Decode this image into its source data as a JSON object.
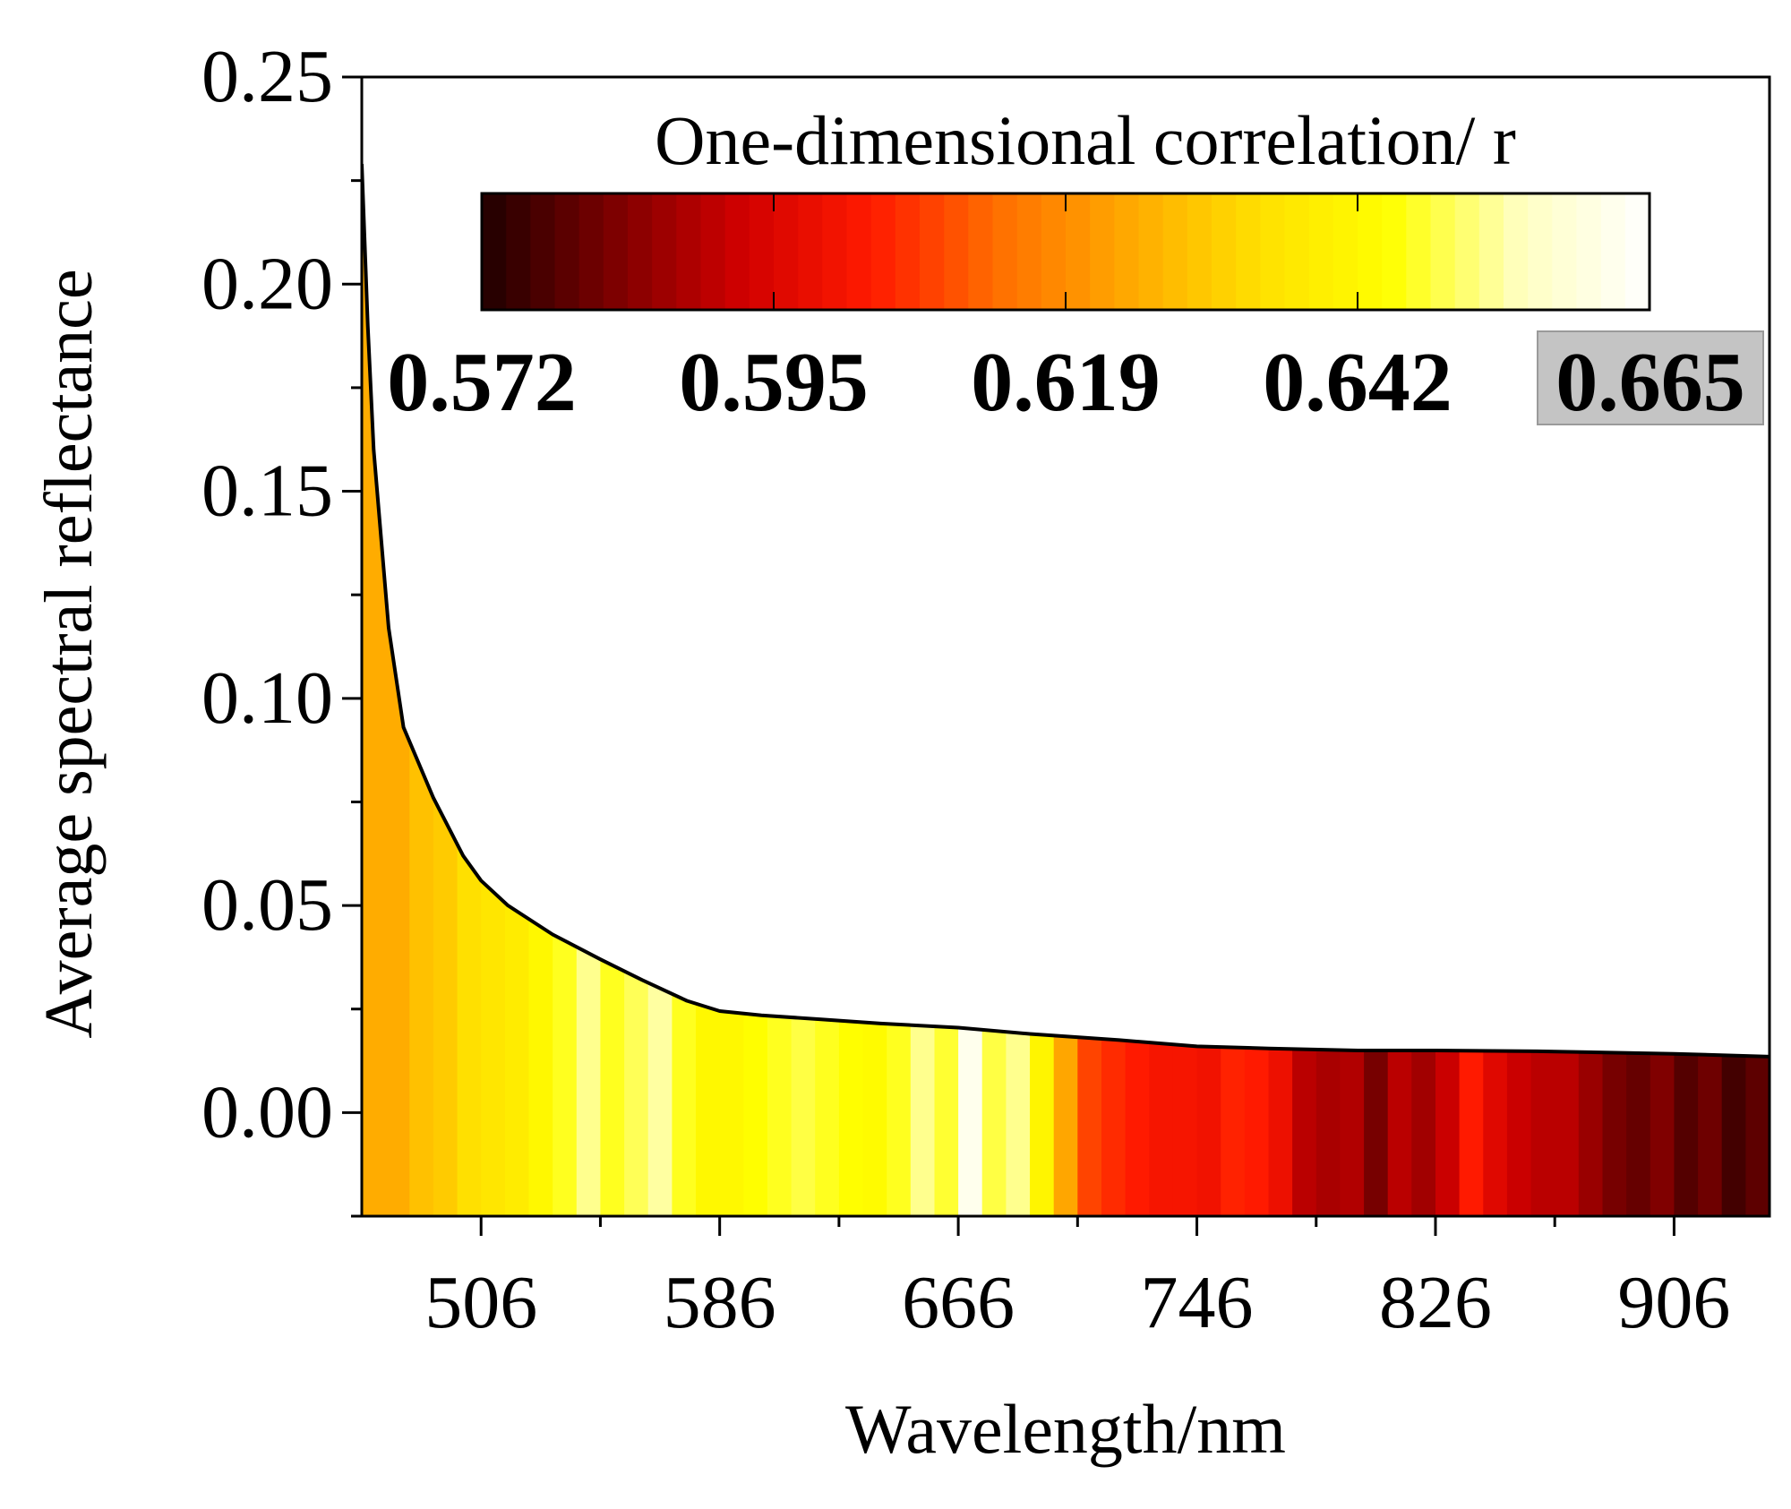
{
  "chart_data": {
    "type": "area",
    "title": "",
    "xlabel": "Wavelength/nm",
    "ylabel": "Average spectral reflectance",
    "xlim": [
      466,
      938
    ],
    "ylim": [
      -0.025,
      0.25
    ],
    "xticks": [
      506,
      586,
      666,
      746,
      826,
      906
    ],
    "xtick_labels": [
      "506",
      "586",
      "666",
      "746",
      "826",
      "906"
    ],
    "yticks": [
      0.0,
      0.05,
      0.1,
      0.15,
      0.2,
      0.25
    ],
    "ytick_labels": [
      "0.00",
      "0.05",
      "0.10",
      "0.15",
      "0.20",
      "0.25"
    ],
    "grid": false,
    "series": [
      {
        "x": [
          466,
          468,
          470,
          475,
          480,
          490,
          500,
          506,
          515,
          530,
          546,
          560,
          575,
          586,
          600,
          620,
          640,
          666,
          690,
          720,
          746,
          770,
          800,
          826,
          860,
          906,
          938
        ],
        "y": [
          0.229,
          0.19,
          0.16,
          0.117,
          0.093,
          0.076,
          0.062,
          0.056,
          0.05,
          0.043,
          0.037,
          0.032,
          0.027,
          0.0245,
          0.0235,
          0.0225,
          0.0215,
          0.0205,
          0.019,
          0.0175,
          0.016,
          0.0155,
          0.015,
          0.015,
          0.0148,
          0.0142,
          0.0135
        ]
      }
    ],
    "colorbar": {
      "title": "One-dimensional correlation/ r",
      "tick_labels": [
        "0.572",
        "0.595",
        "0.619",
        "0.642",
        "0.665"
      ],
      "min": 0.572,
      "max": 0.665,
      "location": "top",
      "colormap": [
        "#200000",
        "#7a0000",
        "#d00000",
        "#ff1a00",
        "#ff7000",
        "#ffaa00",
        "#ffe000",
        "#ffff00",
        "#ffffc0",
        "#ffffff"
      ]
    },
    "bands": {
      "x_start": 466,
      "width": 8,
      "r": [
        0.624,
        0.624,
        0.628,
        0.63,
        0.634,
        0.636,
        0.638,
        0.642,
        0.646,
        0.652,
        0.646,
        0.649,
        0.653,
        0.646,
        0.642,
        0.642,
        0.644,
        0.646,
        0.648,
        0.646,
        0.644,
        0.643,
        0.646,
        0.652,
        0.647,
        0.662,
        0.648,
        0.652,
        0.641,
        0.623,
        0.608,
        0.605,
        0.603,
        0.601,
        0.601,
        0.6,
        0.604,
        0.603,
        0.599,
        0.59,
        0.588,
        0.589,
        0.582,
        0.59,
        0.587,
        0.592,
        0.603,
        0.596,
        0.592,
        0.59,
        0.59,
        0.586,
        0.582,
        0.58,
        0.583,
        0.578,
        0.581,
        0.576,
        0.579
      ]
    }
  }
}
